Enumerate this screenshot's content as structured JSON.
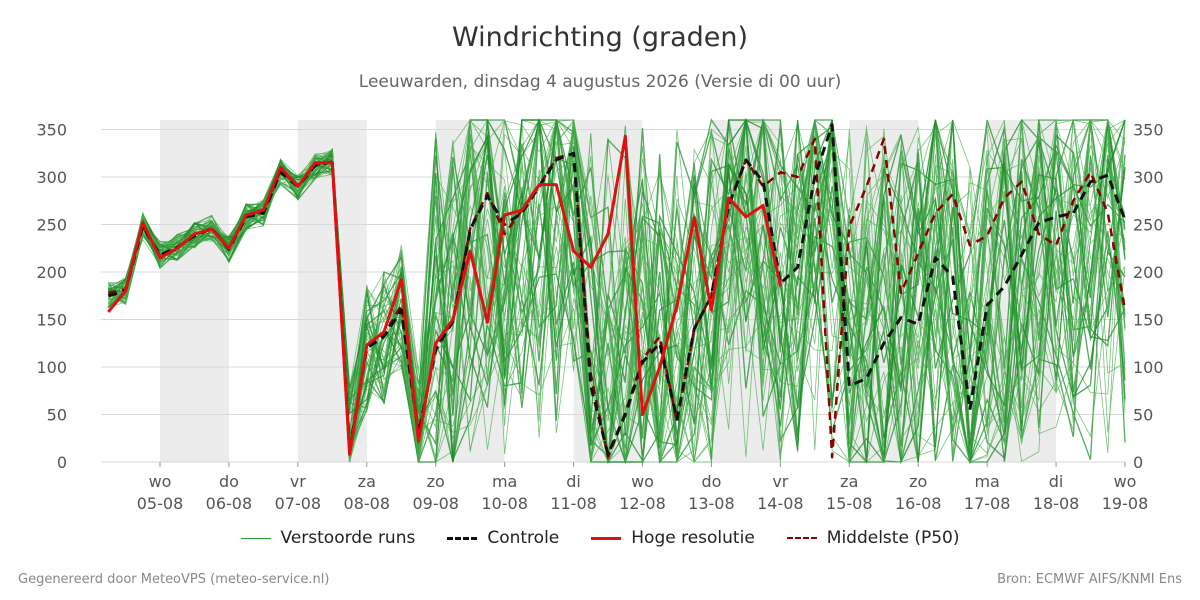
{
  "header": {
    "title": "Windrichting (graden)",
    "subtitle": "Leeuwarden, dinsdag  4 augustus 2026 (Versie di 00 uur)"
  },
  "footer": {
    "left": "Gegenereerd door MeteoVPS (meteo-service.nl)",
    "right": "Bron: ECMWF AIFS/KNMI Ens"
  },
  "legend": [
    {
      "label": "Verstoorde runs",
      "color": "#2ca02c",
      "style": "thin"
    },
    {
      "label": "Controle",
      "color": "#111111",
      "style": "dashed"
    },
    {
      "label": "Hoge resolutie",
      "color": "#e01010",
      "style": "solid"
    },
    {
      "label": "Middelste (P50)",
      "color": "#8b0000",
      "style": "dashed"
    }
  ],
  "chart_data": {
    "type": "line",
    "title": "Windrichting (graden)",
    "ylim": [
      0,
      360
    ],
    "y_ticks": [
      0,
      50,
      100,
      150,
      200,
      250,
      300,
      350
    ],
    "x_ticks": [
      {
        "day": "wo",
        "date": "05-08"
      },
      {
        "day": "do",
        "date": "06-08"
      },
      {
        "day": "vr",
        "date": "07-08"
      },
      {
        "day": "za",
        "date": "08-08"
      },
      {
        "day": "zo",
        "date": "09-08"
      },
      {
        "day": "ma",
        "date": "10-08"
      },
      {
        "day": "di",
        "date": "11-08"
      },
      {
        "day": "wo",
        "date": "12-08"
      },
      {
        "day": "do",
        "date": "13-08"
      },
      {
        "day": "vr",
        "date": "14-08"
      },
      {
        "day": "za",
        "date": "15-08"
      },
      {
        "day": "zo",
        "date": "16-08"
      },
      {
        "day": "ma",
        "date": "17-08"
      },
      {
        "day": "di",
        "date": "18-08"
      },
      {
        "day": "wo",
        "date": "19-08"
      }
    ],
    "shaded_day_spans": [
      [
        0,
        1
      ],
      [
        2,
        3
      ],
      [
        4,
        5
      ],
      [
        6,
        7
      ],
      [
        8,
        9
      ],
      [
        10,
        11
      ],
      [
        12,
        13
      ]
    ],
    "grid": true,
    "legend_position": "bottom",
    "series": [
      {
        "name": "Hoge resolutie",
        "color": "#e01010",
        "x": [
          -0.75,
          -0.5,
          -0.25,
          0,
          0.25,
          0.5,
          0.75,
          1,
          1.25,
          1.5,
          1.75,
          2,
          2.25,
          2.5,
          2.75,
          3,
          3.25,
          3.5,
          3.75,
          4,
          4.25,
          4.5,
          4.75,
          5,
          5.25,
          5.5,
          5.75,
          6,
          6.25,
          6.5,
          6.75,
          7,
          7.25,
          7.5,
          7.75,
          8,
          8.25,
          8.5,
          8.75,
          9
        ],
        "values": [
          158,
          180,
          252,
          215,
          225,
          240,
          245,
          225,
          260,
          265,
          310,
          290,
          315,
          315,
          8,
          123,
          137,
          192,
          22,
          125,
          150,
          222,
          147,
          260,
          265,
          292,
          292,
          222,
          205,
          240,
          343,
          50,
          100,
          165,
          257,
          160,
          278,
          258,
          270,
          185
        ]
      },
      {
        "name": "Controle",
        "color": "#111111",
        "x": [
          -0.75,
          -0.5,
          -0.25,
          0,
          0.25,
          0.5,
          0.75,
          1,
          1.25,
          1.5,
          1.75,
          2,
          2.25,
          2.5,
          2.75,
          3,
          3.25,
          3.5,
          3.75,
          4,
          4.25,
          4.5,
          4.75,
          5,
          5.25,
          5.5,
          5.75,
          6,
          6.25,
          6.5,
          6.75,
          7,
          7.25,
          7.5,
          7.75,
          8,
          8.25,
          8.5,
          8.75,
          9,
          9.25,
          9.5,
          9.75,
          10,
          10.25,
          10.5,
          10.75,
          11,
          11.25,
          11.5,
          11.75,
          12,
          12.25,
          12.5,
          12.75,
          13,
          13.25,
          13.5,
          13.75,
          14
        ],
        "values": [
          175,
          180,
          248,
          218,
          226,
          238,
          246,
          224,
          258,
          262,
          305,
          290,
          312,
          316,
          12,
          120,
          132,
          160,
          30,
          118,
          148,
          245,
          280,
          250,
          262,
          290,
          318,
          325,
          80,
          8,
          50,
          105,
          125,
          45,
          140,
          175,
          270,
          318,
          295,
          188,
          205,
          300,
          355,
          80,
          88,
          125,
          152,
          145,
          215,
          195,
          55,
          165,
          185,
          218,
          252,
          258,
          262,
          295,
          302,
          255
        ]
      },
      {
        "name": "Middelste (P50)",
        "color": "#8b0000",
        "x": [
          -0.75,
          -0.5,
          -0.25,
          0,
          0.25,
          0.5,
          0.75,
          1,
          1.25,
          1.5,
          1.75,
          2,
          2.25,
          2.5,
          2.75,
          3,
          3.25,
          3.5,
          3.75,
          4,
          4.25,
          4.5,
          4.75,
          5,
          5.25,
          5.5,
          5.75,
          6,
          6.25,
          6.5,
          6.75,
          7,
          7.25,
          7.5,
          7.75,
          8,
          8.25,
          8.5,
          8.75,
          9,
          9.25,
          9.5,
          9.75,
          10,
          10.25,
          10.5,
          10.75,
          11,
          11.25,
          11.5,
          11.75,
          12,
          12.25,
          12.5,
          12.75,
          13,
          13.25,
          13.5,
          13.75,
          14
        ],
        "values": [
          178,
          182,
          250,
          217,
          225,
          239,
          245,
          226,
          259,
          263,
          307,
          291,
          313,
          315,
          10,
          121,
          134,
          165,
          28,
          120,
          149,
          246,
          283,
          240,
          265,
          291,
          320,
          325,
          92,
          5,
          52,
          108,
          132,
          42,
          140,
          175,
          270,
          318,
          290,
          305,
          300,
          340,
          5,
          248,
          290,
          340,
          178,
          220,
          262,
          282,
          228,
          238,
          278,
          295,
          240,
          228,
          275,
          305,
          262,
          160
        ]
      }
    ]
  }
}
